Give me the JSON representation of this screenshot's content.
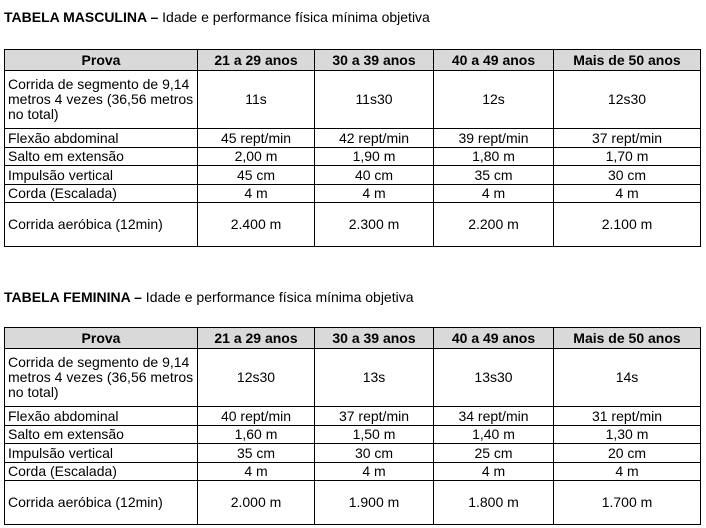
{
  "columns": [
    "Prova",
    "21 a 29 anos",
    "30 a 39 anos",
    "40 a 49 anos",
    "Mais de 50 anos"
  ],
  "tables": [
    {
      "title_bold": "TABELA MASCULINA –",
      "title_rest": " Idade e performance física mínima objetiva",
      "rows": [
        [
          "Corrida de segmento de 9,14 metros 4 vezes (36,56 metros no total)",
          "11s",
          "11s30",
          "12s",
          "12s30"
        ],
        [
          "Flexão abdominal",
          "45 rept/min",
          "42 rept/min",
          "39 rept/min",
          "37 rept/min"
        ],
        [
          "Salto em extensão",
          "2,00 m",
          "1,90 m",
          "1,80 m",
          "1,70 m"
        ],
        [
          "Impulsão vertical",
          "45 cm",
          "40 cm",
          "35 cm",
          "30 cm"
        ],
        [
          "Corda (Escalada)",
          "4 m",
          "4 m",
          "4 m",
          "4 m"
        ],
        [
          "Corrida aeróbica (12min)",
          "2.400 m",
          "2.300 m",
          "2.200 m",
          "2.100 m"
        ]
      ]
    },
    {
      "title_bold": "TABELA FEMININA –",
      "title_rest": " Idade e performance física mínima objetiva",
      "rows": [
        [
          "Corrida de segmento de 9,14 metros 4 vezes (36,56 metros no total)",
          "12s30",
          "13s",
          "13s30",
          "14s"
        ],
        [
          "Flexão abdominal",
          "40 rept/min",
          "37 rept/min",
          "34 rept/min",
          "31 rept/min"
        ],
        [
          "Salto em extensão",
          "1,60 m",
          "1,50 m",
          "1,40 m",
          "1,30 m"
        ],
        [
          "Impulsão vertical",
          "35 cm",
          "30 cm",
          "25 cm",
          "20 cm"
        ],
        [
          "Corda (Escalada)",
          "4 m",
          "4 m",
          "4 m",
          "4 m"
        ],
        [
          "Corrida aeróbica (12min)",
          "2.000 m",
          "1.900 m",
          "1.800 m",
          "1.700 m"
        ]
      ]
    }
  ]
}
